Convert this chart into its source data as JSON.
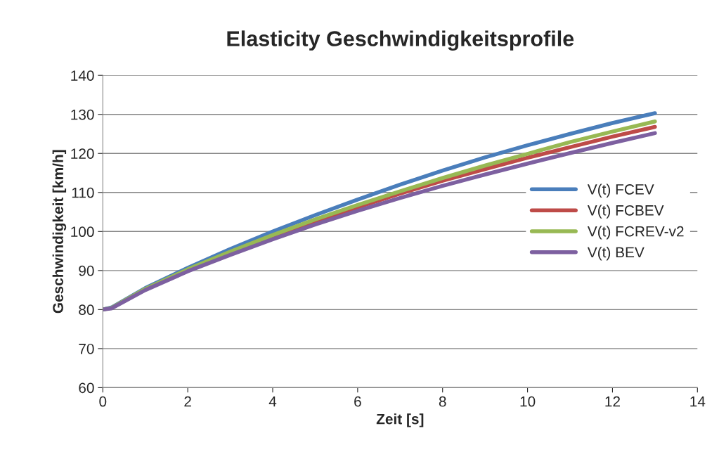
{
  "chart_data": {
    "type": "line",
    "title": "Elasticity Geschwindigkeitsprofile",
    "xlabel": "Zeit [s]",
    "ylabel": "Geschwindigkeit [km/h]",
    "x": [
      0,
      0.2,
      1,
      2,
      3,
      4,
      5,
      6,
      7,
      8,
      9,
      10,
      11,
      12,
      13
    ],
    "series": [
      {
        "name": "V(t) FCEV",
        "color": "#4a7ebb",
        "values": [
          80,
          80.5,
          85.5,
          90.7,
          95.5,
          100,
          104.2,
          108.2,
          112,
          115.6,
          119,
          122.1,
          125,
          127.8,
          130.3
        ]
      },
      {
        "name": "V(t) FCBEV",
        "color": "#be4b48",
        "values": [
          null,
          null,
          null,
          null,
          94.6,
          98.8,
          102.6,
          106.2,
          109.7,
          113,
          116,
          118.9,
          121.6,
          124.3,
          126.8
        ]
      },
      {
        "name": "V(t) FCREV-v2",
        "color": "#98b954",
        "values": [
          80,
          80.4,
          85.3,
          90.3,
          94.8,
          99.1,
          103.1,
          106.8,
          110.3,
          113.7,
          116.9,
          119.9,
          122.9,
          125.6,
          128.2
        ]
      },
      {
        "name": "V(t) BEV",
        "color": "#7d60a0",
        "values": [
          80,
          80.3,
          85,
          89.8,
          94,
          98,
          101.8,
          105.3,
          108.6,
          111.7,
          114.6,
          117.4,
          120.1,
          122.7,
          125.2
        ]
      }
    ],
    "xlim": [
      0,
      14
    ],
    "xticks": [
      0,
      2,
      4,
      6,
      8,
      10,
      12,
      14
    ],
    "ylim": [
      60,
      140
    ],
    "yticks": [
      60,
      70,
      80,
      90,
      100,
      110,
      120,
      130,
      140
    ],
    "grid": "y",
    "legend": "right",
    "marker": "none",
    "line_style": "solid"
  }
}
